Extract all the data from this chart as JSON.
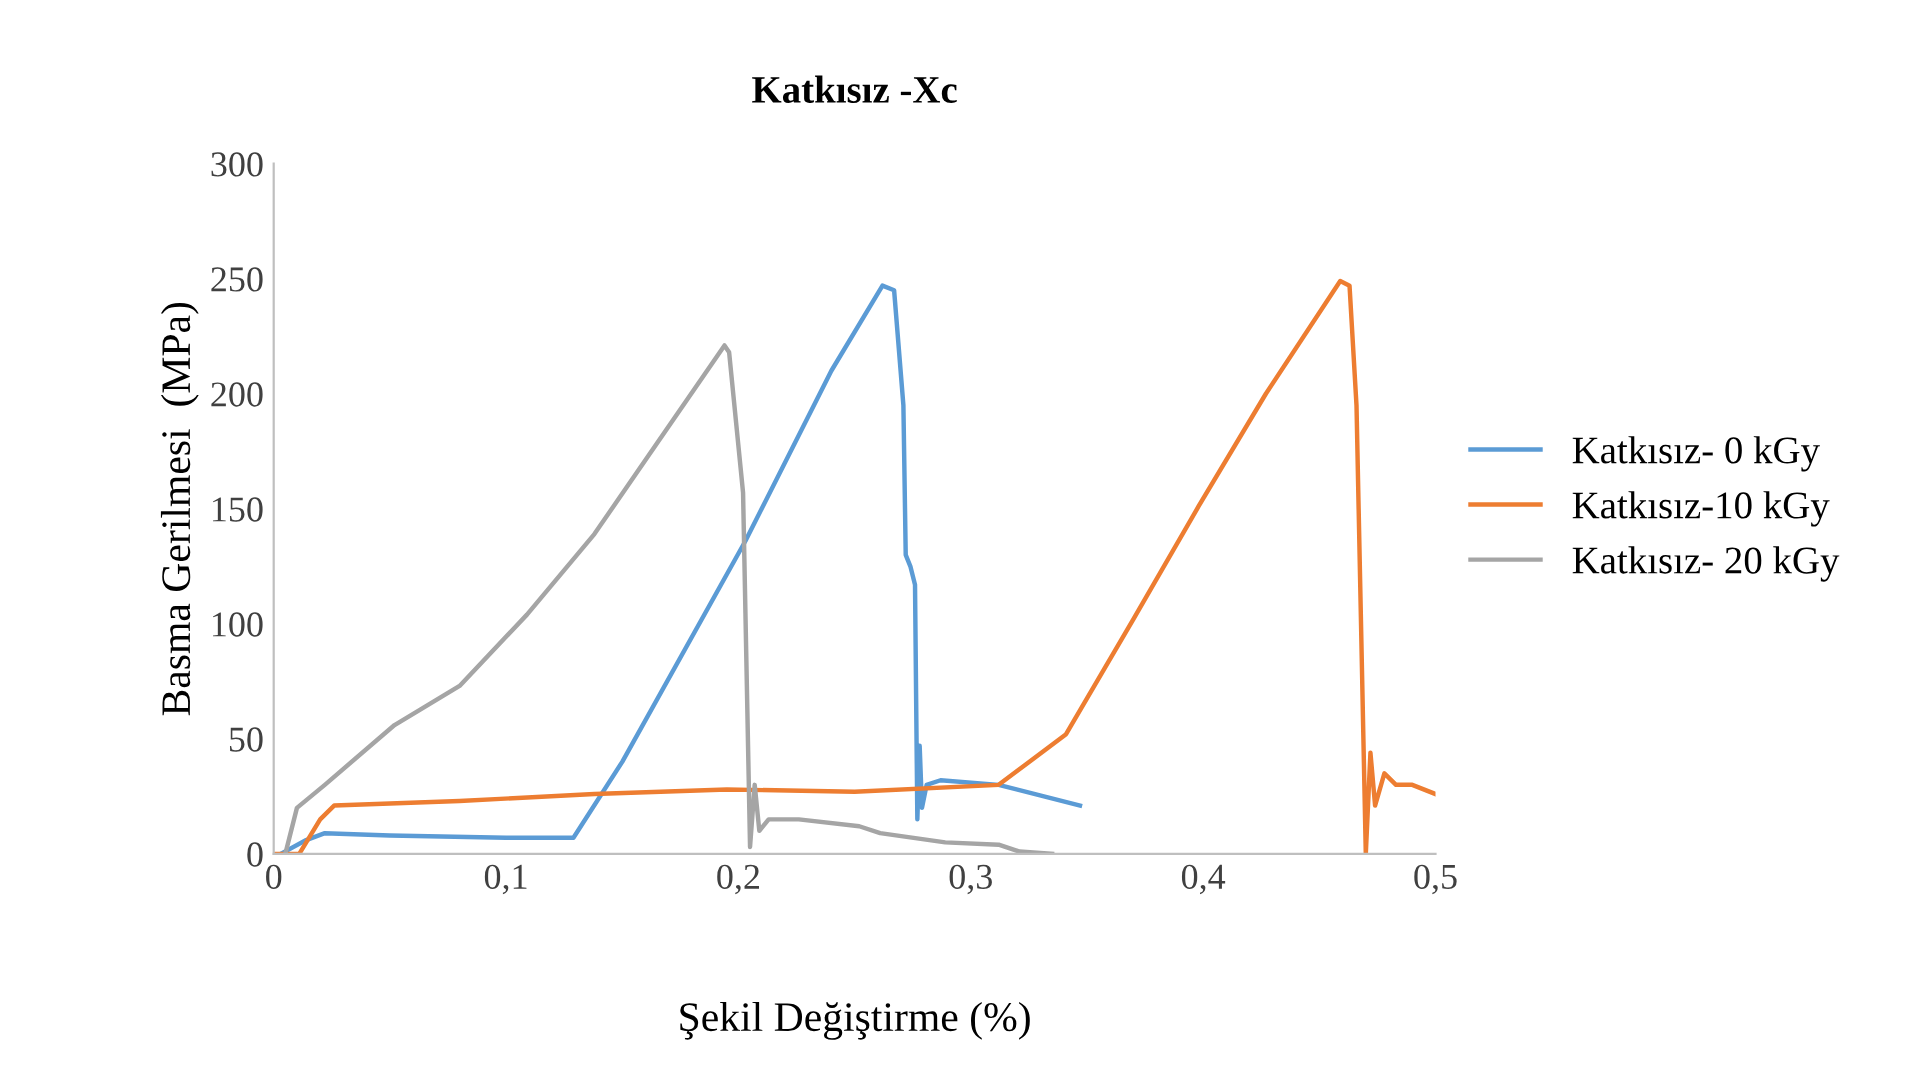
{
  "chart_data": {
    "type": "line",
    "title": "Katkısız -Xc",
    "xlabel": "Şekil Değiştirme (%)",
    "ylabel": "Basma Gerilmesi  (MPa)",
    "xlim": [
      0,
      0.5
    ],
    "ylim": [
      0,
      300
    ],
    "xticks": [
      0,
      {
        "value": 0.1,
        "label": "0,1"
      },
      {
        "value": 0.2,
        "label": "0,2"
      },
      {
        "value": 0.3,
        "label": "0,3"
      },
      {
        "value": 0.4,
        "label": "0,4"
      },
      {
        "value": 0.5,
        "label": "0,5"
      }
    ],
    "yticks": [
      0,
      50,
      100,
      150,
      200,
      250,
      300
    ],
    "grid": false,
    "legend": "right",
    "marker": "none",
    "line_style": "solid",
    "series": [
      {
        "name": "Katkısız- 0 kGy",
        "color": "#5b9bd5",
        "x": [
          0.003,
          0.014,
          0.022,
          0.05,
          0.1,
          0.129,
          0.15,
          0.203,
          0.24,
          0.262,
          0.267,
          0.271,
          0.272,
          0.274,
          0.276,
          0.277,
          0.278,
          0.279,
          0.281,
          0.287,
          0.312,
          0.347
        ],
        "values": [
          0,
          6,
          9,
          8,
          7,
          7,
          40,
          136,
          210,
          247,
          245,
          195,
          130,
          125,
          117,
          15,
          47,
          20,
          30,
          32,
          30,
          21
        ]
      },
      {
        "name": "Katkısız-10 kGy",
        "color": "#ed7d31",
        "x": [
          0.0,
          0.011,
          0.02,
          0.026,
          0.08,
          0.138,
          0.195,
          0.25,
          0.312,
          0.341,
          0.37,
          0.398,
          0.427,
          0.459,
          0.463,
          0.466,
          0.47,
          0.472,
          0.474,
          0.478,
          0.483,
          0.49,
          0.5
        ],
        "values": [
          0,
          0,
          15,
          21,
          23,
          26,
          28,
          27,
          30,
          52,
          102,
          151,
          200,
          249,
          247,
          195,
          0,
          44,
          21,
          35,
          30,
          30,
          26
        ]
      },
      {
        "name": "Katkısız- 20 kGy",
        "color": "#a5a5a5",
        "x": [
          0.005,
          0.01,
          0.022,
          0.052,
          0.08,
          0.109,
          0.138,
          0.166,
          0.194,
          0.196,
          0.202,
          0.205,
          0.207,
          0.209,
          0.213,
          0.226,
          0.252,
          0.261,
          0.289,
          0.312,
          0.321,
          0.335
        ],
        "values": [
          0,
          20,
          30,
          56,
          73,
          104,
          139,
          180,
          221,
          218,
          157,
          3,
          30,
          10,
          15,
          15,
          12,
          9,
          5,
          4,
          1,
          0
        ]
      }
    ]
  }
}
